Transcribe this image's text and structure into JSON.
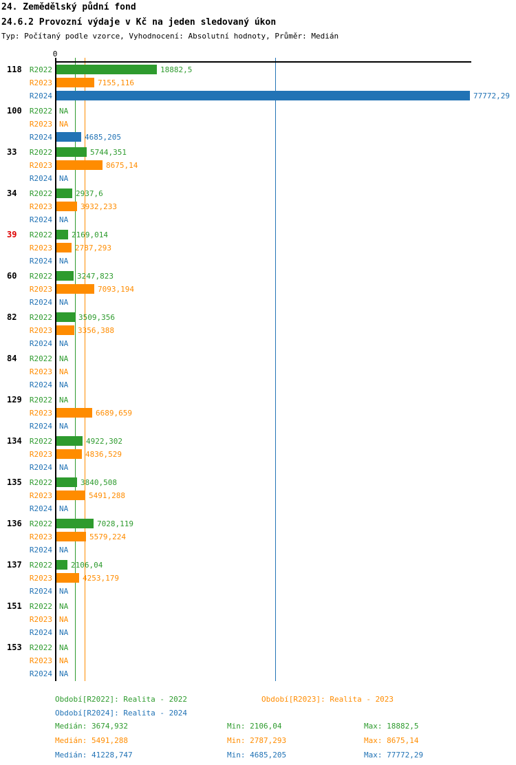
{
  "header": {
    "title": "24. Zemědělský půdní fond",
    "subtitle": "24.6.2 Provozní výdaje v Kč na jeden sledovaný úkon",
    "meta": "Typ: Počítaný podle vzorce, Vyhodnocení: Absolutní hodnoty, Průměr: Medián"
  },
  "chart_data": {
    "type": "bar",
    "orientation": "horizontal",
    "na_label": "NA",
    "axis": {
      "zero_label": "0",
      "xlim": [
        0,
        77772.29
      ],
      "grid": false
    },
    "highlight_color": "#DD0000",
    "default_id_color": "#000000",
    "series": [
      {
        "key": "R2022",
        "name": "Realita - 2022",
        "color": "#2E9B2E",
        "median": 3674.932,
        "min": 2106.04,
        "max": 18882.5,
        "median_line": "solid"
      },
      {
        "key": "R2023",
        "name": "Realita - 2023",
        "color": "#FF8C00",
        "median": 5491.288,
        "min": 2787.293,
        "max": 8675.14,
        "median_line": "solid"
      },
      {
        "key": "R2024",
        "name": "Realita - 2024",
        "color": "#2273B5",
        "median": 41228.747,
        "min": 4685.205,
        "max": 77772.29,
        "median_line": "solid"
      }
    ],
    "groups": [
      {
        "id": "118",
        "highlight": false,
        "values": [
          18882.5,
          7155.116,
          77772.29
        ],
        "display": [
          "18882,5",
          "7155,116",
          "77772,29"
        ]
      },
      {
        "id": "100",
        "highlight": false,
        "values": [
          null,
          null,
          4685.205
        ],
        "display": [
          null,
          null,
          "4685,205"
        ]
      },
      {
        "id": "33",
        "highlight": false,
        "values": [
          5744.351,
          8675.14,
          null
        ],
        "display": [
          "5744,351",
          "8675,14",
          null
        ]
      },
      {
        "id": "34",
        "highlight": false,
        "values": [
          2937.6,
          3932.233,
          null
        ],
        "display": [
          "2937,6",
          "3932,233",
          null
        ]
      },
      {
        "id": "39",
        "highlight": true,
        "values": [
          2169.014,
          2787.293,
          null
        ],
        "display": [
          "2169,014",
          "2787,293",
          null
        ]
      },
      {
        "id": "60",
        "highlight": false,
        "values": [
          3247.823,
          7093.194,
          null
        ],
        "display": [
          "3247,823",
          "7093,194",
          null
        ]
      },
      {
        "id": "82",
        "highlight": false,
        "values": [
          3509.356,
          3356.388,
          null
        ],
        "display": [
          "3509,356",
          "3356,388",
          null
        ]
      },
      {
        "id": "84",
        "highlight": false,
        "values": [
          null,
          null,
          null
        ],
        "display": [
          null,
          null,
          null
        ]
      },
      {
        "id": "129",
        "highlight": false,
        "values": [
          null,
          6689.659,
          null
        ],
        "display": [
          null,
          "6689,659",
          null
        ]
      },
      {
        "id": "134",
        "highlight": false,
        "values": [
          4922.302,
          4836.529,
          null
        ],
        "display": [
          "4922,302",
          "4836,529",
          null
        ]
      },
      {
        "id": "135",
        "highlight": false,
        "values": [
          3840.508,
          5491.288,
          null
        ],
        "display": [
          "3840,508",
          "5491,288",
          null
        ]
      },
      {
        "id": "136",
        "highlight": false,
        "values": [
          7028.119,
          5579.224,
          null
        ],
        "display": [
          "7028,119",
          "5579,224",
          null
        ]
      },
      {
        "id": "137",
        "highlight": false,
        "values": [
          2106.04,
          4253.179,
          null
        ],
        "display": [
          "2106,04",
          "4253,179",
          null
        ]
      },
      {
        "id": "151",
        "highlight": false,
        "values": [
          null,
          null,
          null
        ],
        "display": [
          null,
          null,
          null
        ]
      },
      {
        "id": "153",
        "highlight": false,
        "values": [
          null,
          null,
          null
        ],
        "display": [
          null,
          null,
          null
        ]
      }
    ]
  },
  "legend": {
    "items": [
      {
        "label": "Období[R2022]: Realita - 2022"
      },
      {
        "label": "Období[R2023]: Realita - 2023"
      },
      {
        "label": "Období[R2024]: Realita - 2024"
      }
    ]
  },
  "stats": {
    "rows": [
      {
        "median": "Medián: 3674,932",
        "min": "Min: 2106,04",
        "max": "Max: 18882,5"
      },
      {
        "median": "Medián: 5491,288",
        "min": "Min: 2787,293",
        "max": "Max: 8675,14"
      },
      {
        "median": "Medián: 41228,747",
        "min": "Min: 4685,205",
        "max": "Max: 77772,29"
      }
    ]
  }
}
